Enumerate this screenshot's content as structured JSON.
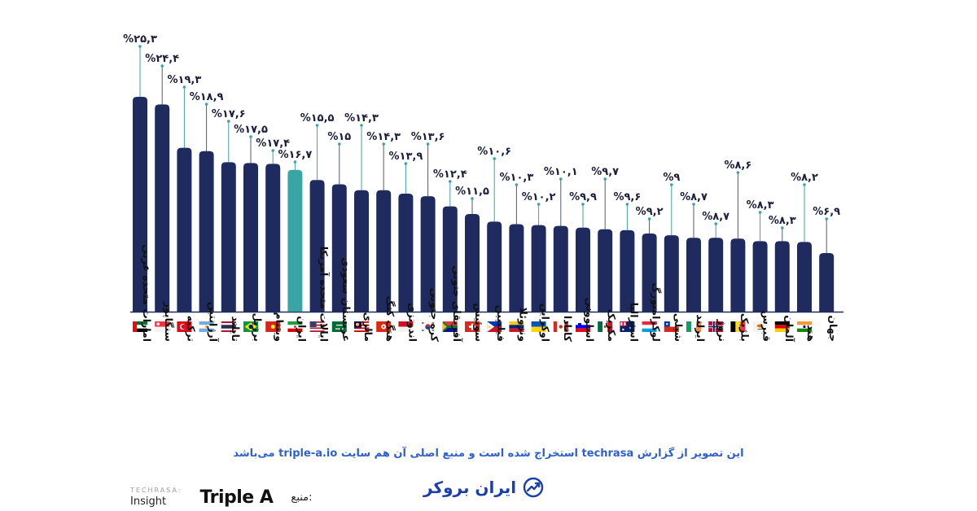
{
  "chart_data": {
    "type": "bar",
    "categories": [
      "امارات متحده عربی",
      "سنگاپور",
      "ترکیه",
      "آرژانتین",
      "تایلند",
      "برزیل",
      "ویتنام",
      "ایران",
      "ایالات متحده آمریکا",
      "عربستان سعودی",
      "مالزی",
      "هنگ کنگ",
      "اندونزی",
      "کره جنوبی",
      "آفریقای جنوبی",
      "سوئیس",
      "فیلیپین",
      "ونزوئلا",
      "اوکراین",
      "کانادا",
      "اسلوونی",
      "مکزیک",
      "استرالیا",
      "لوکزامبورگ",
      "شیلی",
      "ایرلند",
      "نروژ",
      "بلژیک",
      "قبرس",
      "آلمان",
      "هند",
      "جهان"
    ],
    "values": [
      25.3,
      24.4,
      19.3,
      18.9,
      17.6,
      17.5,
      17.4,
      16.7,
      15.5,
      15,
      14.3,
      14.3,
      13.9,
      13.6,
      12.4,
      11.5,
      10.6,
      10.3,
      10.2,
      10.1,
      9.9,
      9.7,
      9.6,
      9.2,
      9,
      8.7,
      8.7,
      8.6,
      8.3,
      8.3,
      8.2,
      6.9
    ],
    "value_labels": [
      "%۲۵,۳",
      "%۲۴,۴",
      "%۱۹,۳",
      "%۱۸,۹",
      "%۱۷,۶",
      "%۱۷,۵",
      "%۱۷,۴",
      "%۱۶,۷",
      "%۱۵,۵",
      "%۱۵",
      "%۱۴,۳",
      "%۱۴,۳",
      "%۱۳,۹",
      "%۱۳,۶",
      "%۱۲,۴",
      "%۱۱,۵",
      "%۱۰,۶",
      "%۱۰,۳",
      "%۱۰,۲",
      "%۱۰,۱",
      "%۹,۹",
      "%۹,۷",
      "%۹,۶",
      "%۹,۲",
      "%۹",
      "%۸,۷",
      "%۸,۷",
      "%۸,۶",
      "%۸,۳",
      "%۸,۳",
      "%۸,۲",
      "%۶,۹"
    ],
    "highlight_category": "ایران",
    "ylim": [
      0,
      30
    ],
    "grid": false,
    "title": "",
    "xlabel": "",
    "ylabel": ""
  },
  "colors": {
    "bar": "#1f2b5e",
    "highlight_bar": "#3aa6a3",
    "leader_line": "#3aa6a3",
    "baseline": "#1f2b5e",
    "caption": "#2f5fd0",
    "brand": "#1d3fae"
  },
  "flags": [
    "ae",
    "sg",
    "tr",
    "ar",
    "th",
    "br",
    "vn",
    "ir",
    "us",
    "sa",
    "my",
    "hk",
    "id",
    "kr",
    "za",
    "ch",
    "ph",
    "ve",
    "ua",
    "ca",
    "si",
    "mx",
    "au",
    "lu",
    "cl",
    "ie",
    "no",
    "be",
    "cy",
    "de",
    "in",
    "none"
  ],
  "caption": "این تصویر از گزارش techrasa استخراج شده است و منبع اصلی آن هم سایت triple-a.io می‌باشد",
  "footer": {
    "source_label": "منبع:",
    "triplea_logo": "Triple A",
    "techrasa_top": "TECHRASA:",
    "techrasa_bottom": "Insight",
    "brand_name": "ایران بروکر",
    "brand_icon": "growth-chart-icon"
  }
}
